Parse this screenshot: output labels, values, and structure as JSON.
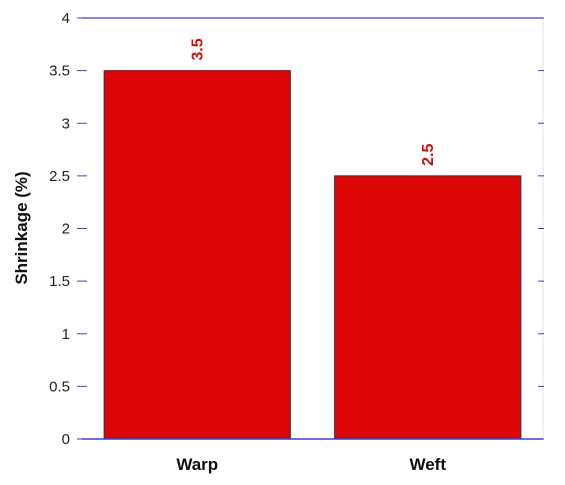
{
  "chart_data": {
    "type": "bar",
    "categories": [
      "Warp",
      "Weft"
    ],
    "values": [
      3.5,
      2.5
    ],
    "data_labels": [
      "3.5",
      "2.5"
    ],
    "title": "",
    "xlabel": "",
    "ylabel": "Shrinkage (%)",
    "ylim": [
      0,
      4
    ],
    "yticks": [
      0,
      0.5,
      1,
      1.5,
      2,
      2.5,
      3,
      3.5,
      4
    ],
    "ytick_labels": [
      "0",
      "0.5",
      "1",
      "1.5",
      "2",
      "2.5",
      "3",
      "3.5",
      "4"
    ],
    "grid": false,
    "legend": "none",
    "colors": {
      "bar": "#dd0606",
      "bar_stroke": "#333333",
      "data_label": "#cc1111",
      "axis": "#4040c0",
      "frame": "#e0e0f0"
    }
  }
}
